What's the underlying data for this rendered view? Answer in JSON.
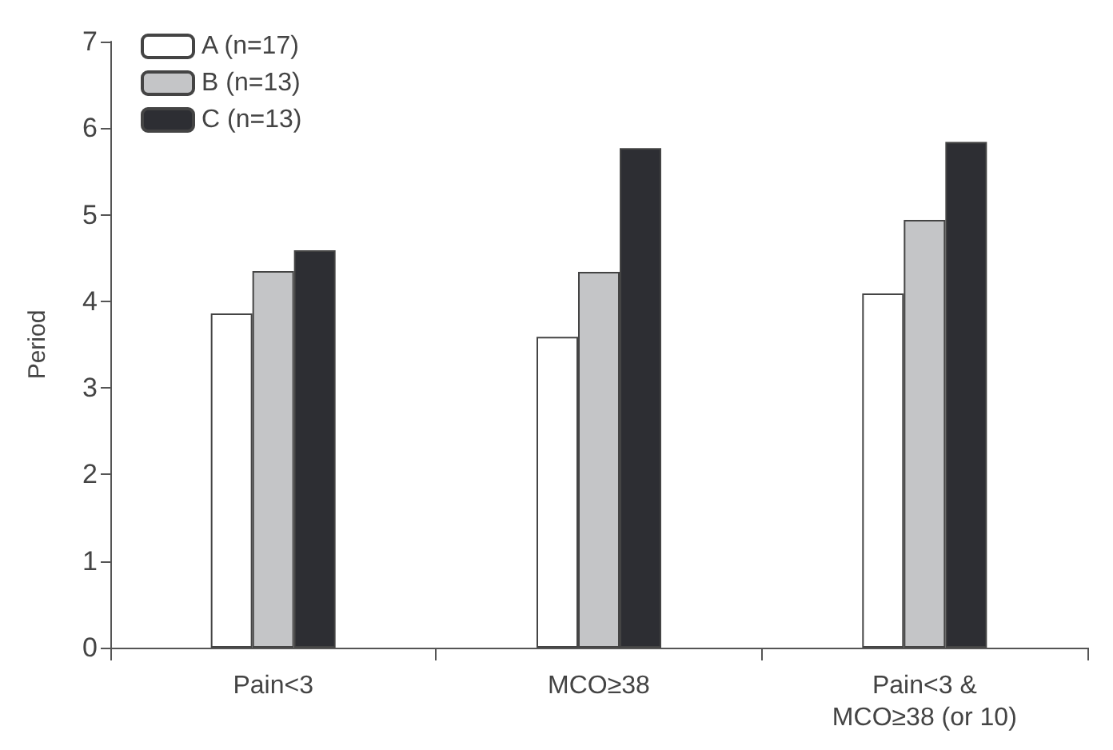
{
  "chart_data": {
    "type": "bar",
    "ylabel": "Period",
    "categories": [
      "Pain<3",
      "MCO≥38",
      "Pain<3 &\nMCO≥38 (or 10)"
    ],
    "series": [
      {
        "name": "A (n=17)",
        "color": "#ffffff",
        "values": [
          3.86,
          3.59,
          4.09
        ]
      },
      {
        "name": "B (n=13)",
        "color": "#c4c5c7",
        "values": [
          4.35,
          4.34,
          4.94
        ]
      },
      {
        "name": "C (n=13)",
        "color": "#2d2e33",
        "values": [
          4.59,
          5.77,
          5.84
        ]
      }
    ],
    "ylim": [
      0,
      7
    ],
    "yticks": [
      0,
      1,
      2,
      3,
      4,
      5,
      6,
      7
    ],
    "grid": false,
    "legend": "top left"
  }
}
